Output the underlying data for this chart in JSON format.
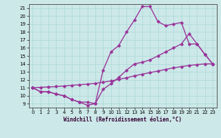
{
  "xlabel": "Windchill (Refroidissement éolien,°C)",
  "bg_color": "#cce8e8",
  "line_color": "#993399",
  "markersize": 2.5,
  "linewidth": 1.0,
  "xlim": [
    -0.5,
    23.5
  ],
  "ylim": [
    8.5,
    21.5
  ],
  "xticks": [
    0,
    1,
    2,
    3,
    4,
    5,
    6,
    7,
    8,
    9,
    10,
    11,
    12,
    13,
    14,
    15,
    16,
    17,
    18,
    19,
    20,
    21,
    22,
    23
  ],
  "yticks": [
    9,
    10,
    11,
    12,
    13,
    14,
    15,
    16,
    17,
    18,
    19,
    20,
    21
  ],
  "line1_x": [
    0,
    1,
    2,
    3,
    4,
    5,
    6,
    7,
    8,
    9,
    10,
    11,
    12,
    13,
    14,
    15,
    16,
    17,
    18,
    19,
    20,
    21,
    22,
    23
  ],
  "line1_y": [
    11.0,
    10.5,
    10.5,
    10.2,
    10.0,
    9.5,
    9.2,
    8.8,
    9.0,
    13.2,
    15.5,
    16.3,
    18.0,
    19.5,
    21.2,
    21.2,
    19.3,
    18.8,
    19.0,
    19.2,
    16.5,
    16.5,
    15.2,
    14.0
  ],
  "line2_x": [
    0,
    1,
    2,
    3,
    4,
    5,
    6,
    7,
    8,
    9,
    10,
    11,
    12,
    13,
    14,
    15,
    16,
    17,
    18,
    19,
    20,
    21,
    22,
    23
  ],
  "line2_y": [
    11.0,
    10.5,
    10.5,
    10.2,
    10.0,
    9.5,
    9.2,
    9.2,
    9.0,
    10.8,
    11.5,
    12.3,
    13.2,
    14.0,
    14.2,
    14.5,
    15.0,
    15.5,
    16.0,
    16.5,
    17.8,
    16.5,
    15.2,
    14.0
  ],
  "line3_x": [
    0,
    1,
    2,
    3,
    4,
    5,
    6,
    7,
    8,
    9,
    10,
    11,
    12,
    13,
    14,
    15,
    16,
    17,
    18,
    19,
    20,
    21,
    22,
    23
  ],
  "line3_y": [
    11.0,
    11.05,
    11.1,
    11.15,
    11.22,
    11.3,
    11.38,
    11.45,
    11.55,
    11.7,
    11.85,
    12.05,
    12.25,
    12.5,
    12.7,
    12.9,
    13.1,
    13.3,
    13.5,
    13.65,
    13.8,
    13.9,
    14.0,
    14.0
  ]
}
